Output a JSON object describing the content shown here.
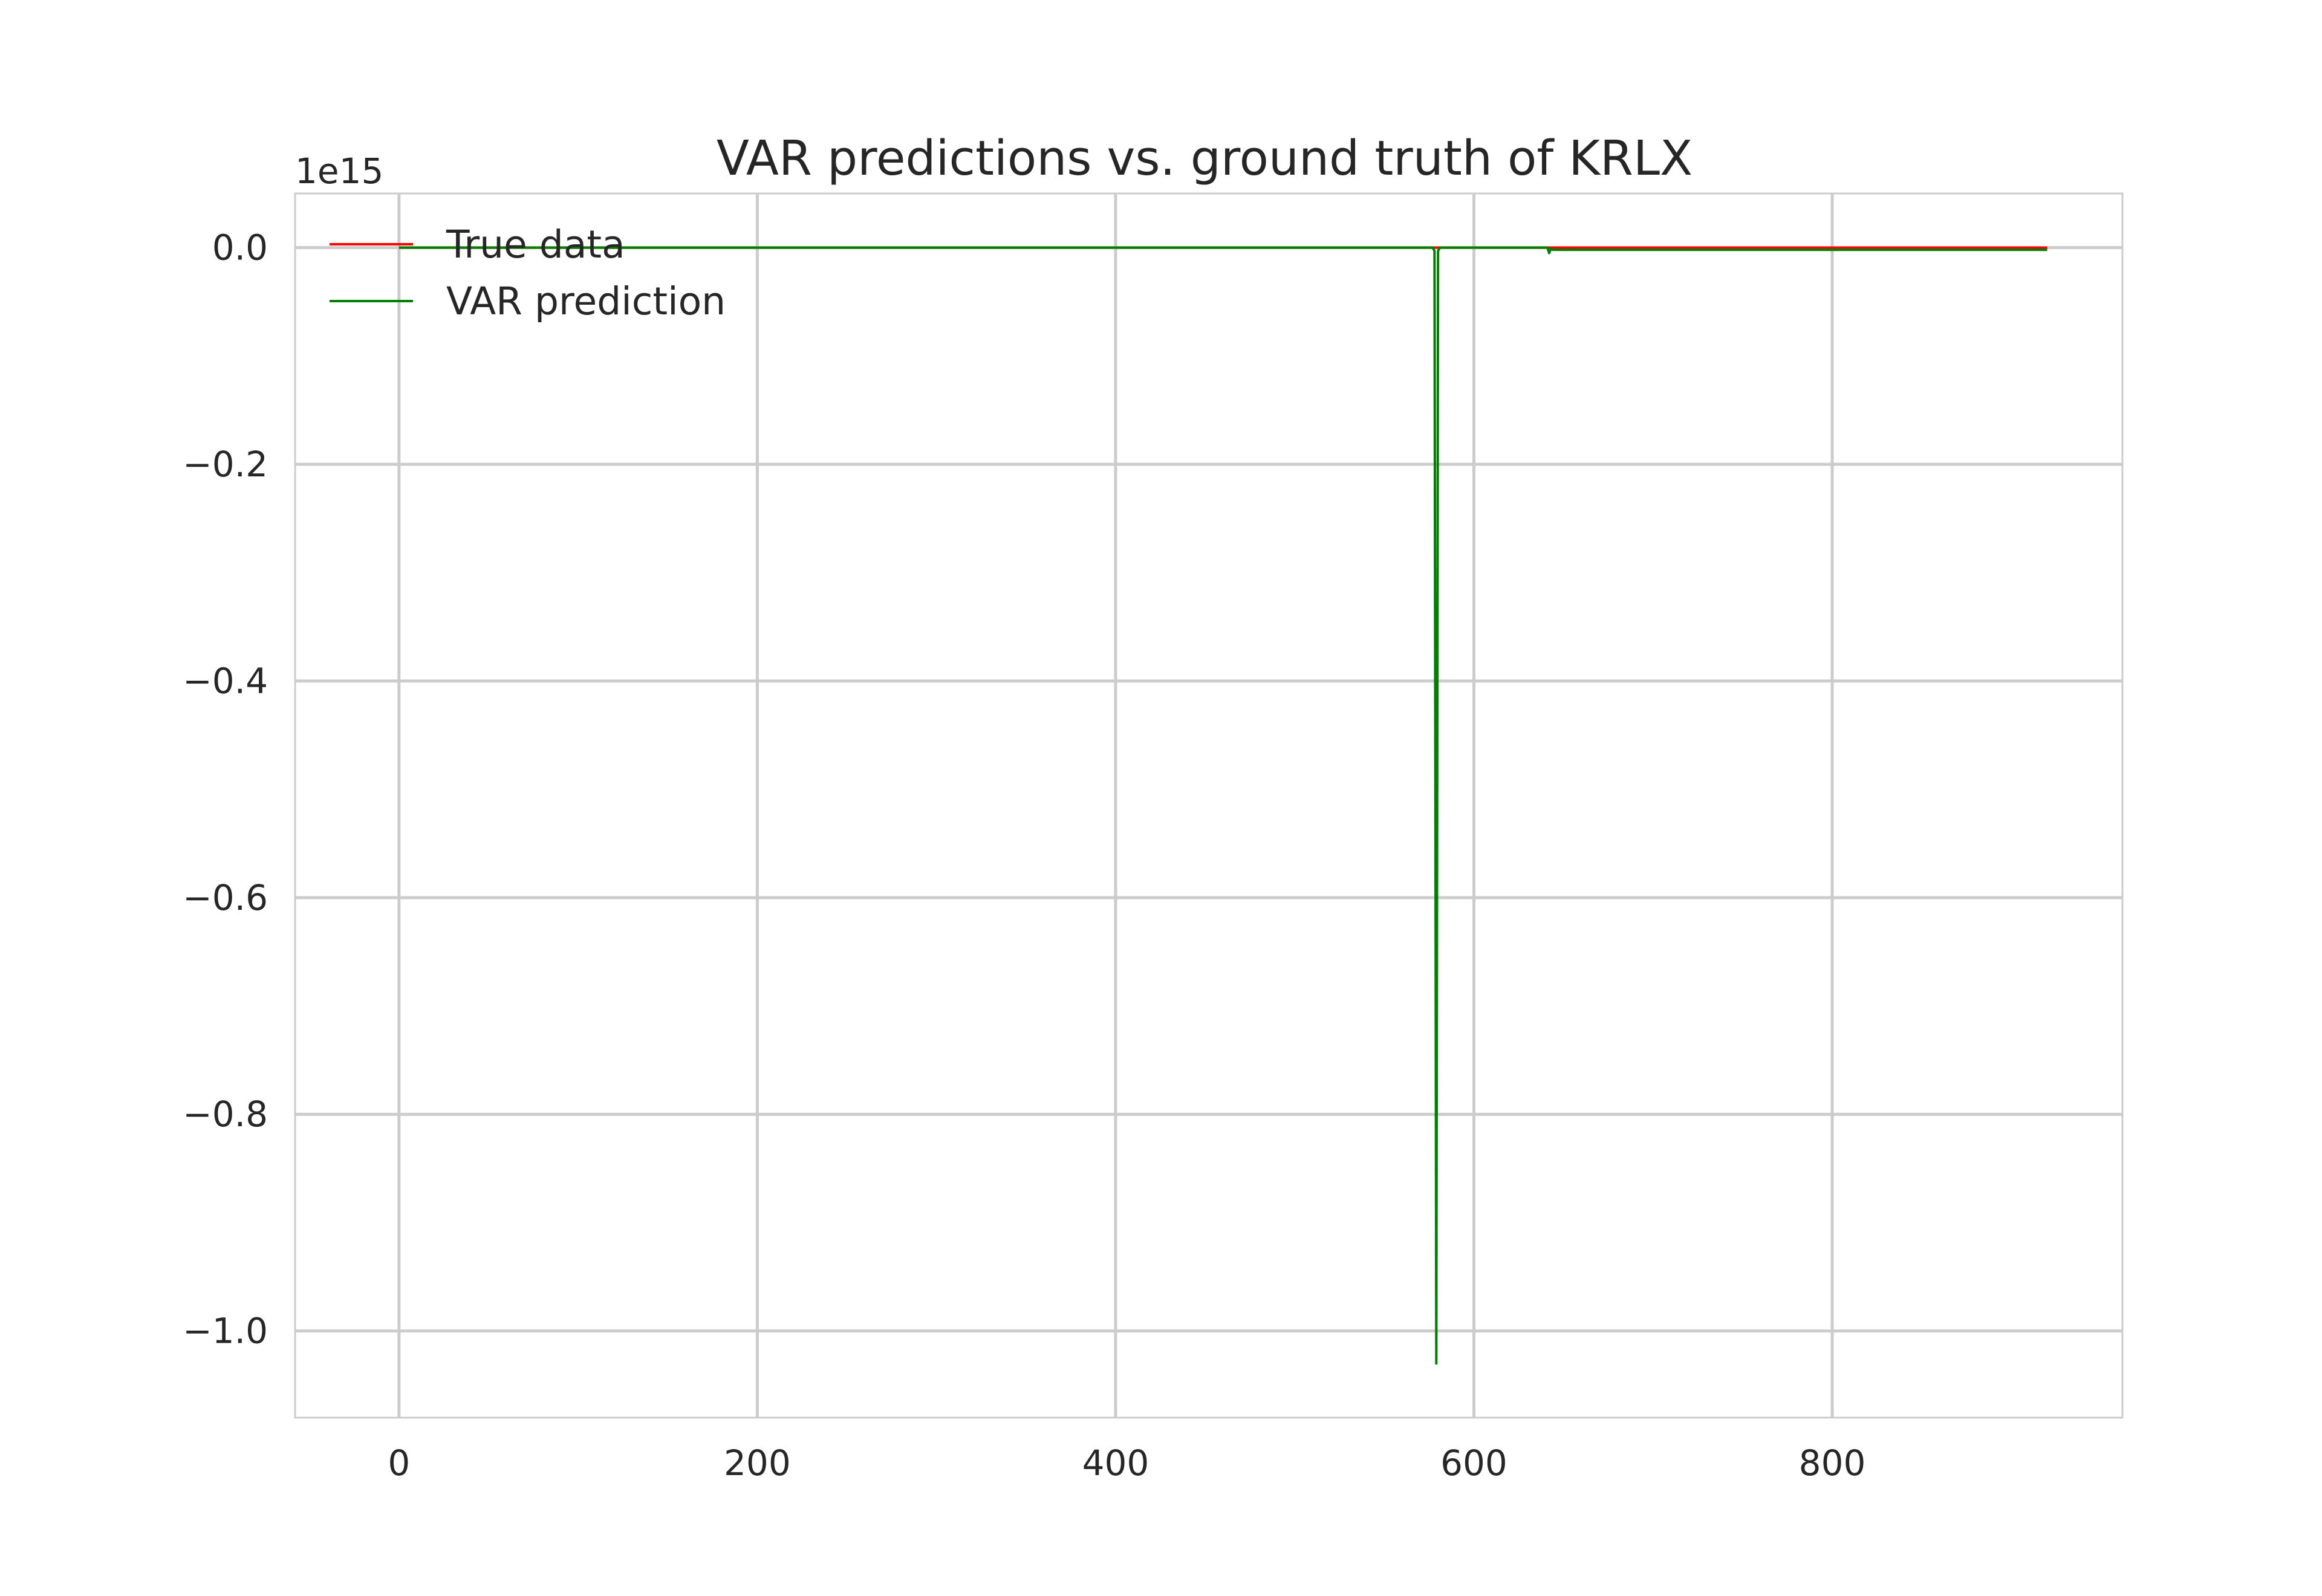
{
  "chart_data": {
    "type": "line",
    "title": "VAR predictions vs. ground truth of KRLX",
    "xlabel": "",
    "ylabel": "",
    "y_offset_label": "1e15",
    "y_scale": 1000000000000000.0,
    "xlim": [
      -58,
      962
    ],
    "ylim": [
      -1.08,
      0.05
    ],
    "x_ticks": [
      0,
      200,
      400,
      600,
      800
    ],
    "x_tick_labels": [
      "0",
      "200",
      "400",
      "600",
      "800"
    ],
    "y_ticks": [
      0.0,
      -0.2,
      -0.4,
      -0.6,
      -0.8,
      -1.0
    ],
    "y_tick_labels": [
      "0.0",
      "−0.2",
      "−0.4",
      "−0.6",
      "−0.8",
      "−1.0"
    ],
    "grid": true,
    "legend_position": "upper-left",
    "series": [
      {
        "name": "True data",
        "color": "#ff0000",
        "x": [
          0,
          100,
          200,
          300,
          400,
          500,
          577,
          578,
          579,
          580,
          581,
          600,
          641,
          642,
          643,
          644,
          700,
          800,
          920
        ],
        "y": [
          0,
          0,
          0,
          0,
          0,
          0,
          0,
          0,
          0,
          0,
          0,
          0,
          0,
          0,
          0,
          0,
          0,
          0,
          0
        ]
      },
      {
        "name": "VAR prediction",
        "color": "#008000",
        "x": [
          0,
          100,
          200,
          300,
          400,
          500,
          577,
          578,
          579,
          580,
          581,
          600,
          641,
          642,
          643,
          644,
          700,
          800,
          920
        ],
        "y": [
          0,
          0,
          0,
          0,
          0,
          0,
          0,
          -0.003,
          -1.03,
          -0.003,
          0,
          0,
          0,
          -0.005,
          -0.001,
          -0.002,
          -0.002,
          -0.002,
          -0.002
        ]
      }
    ]
  }
}
